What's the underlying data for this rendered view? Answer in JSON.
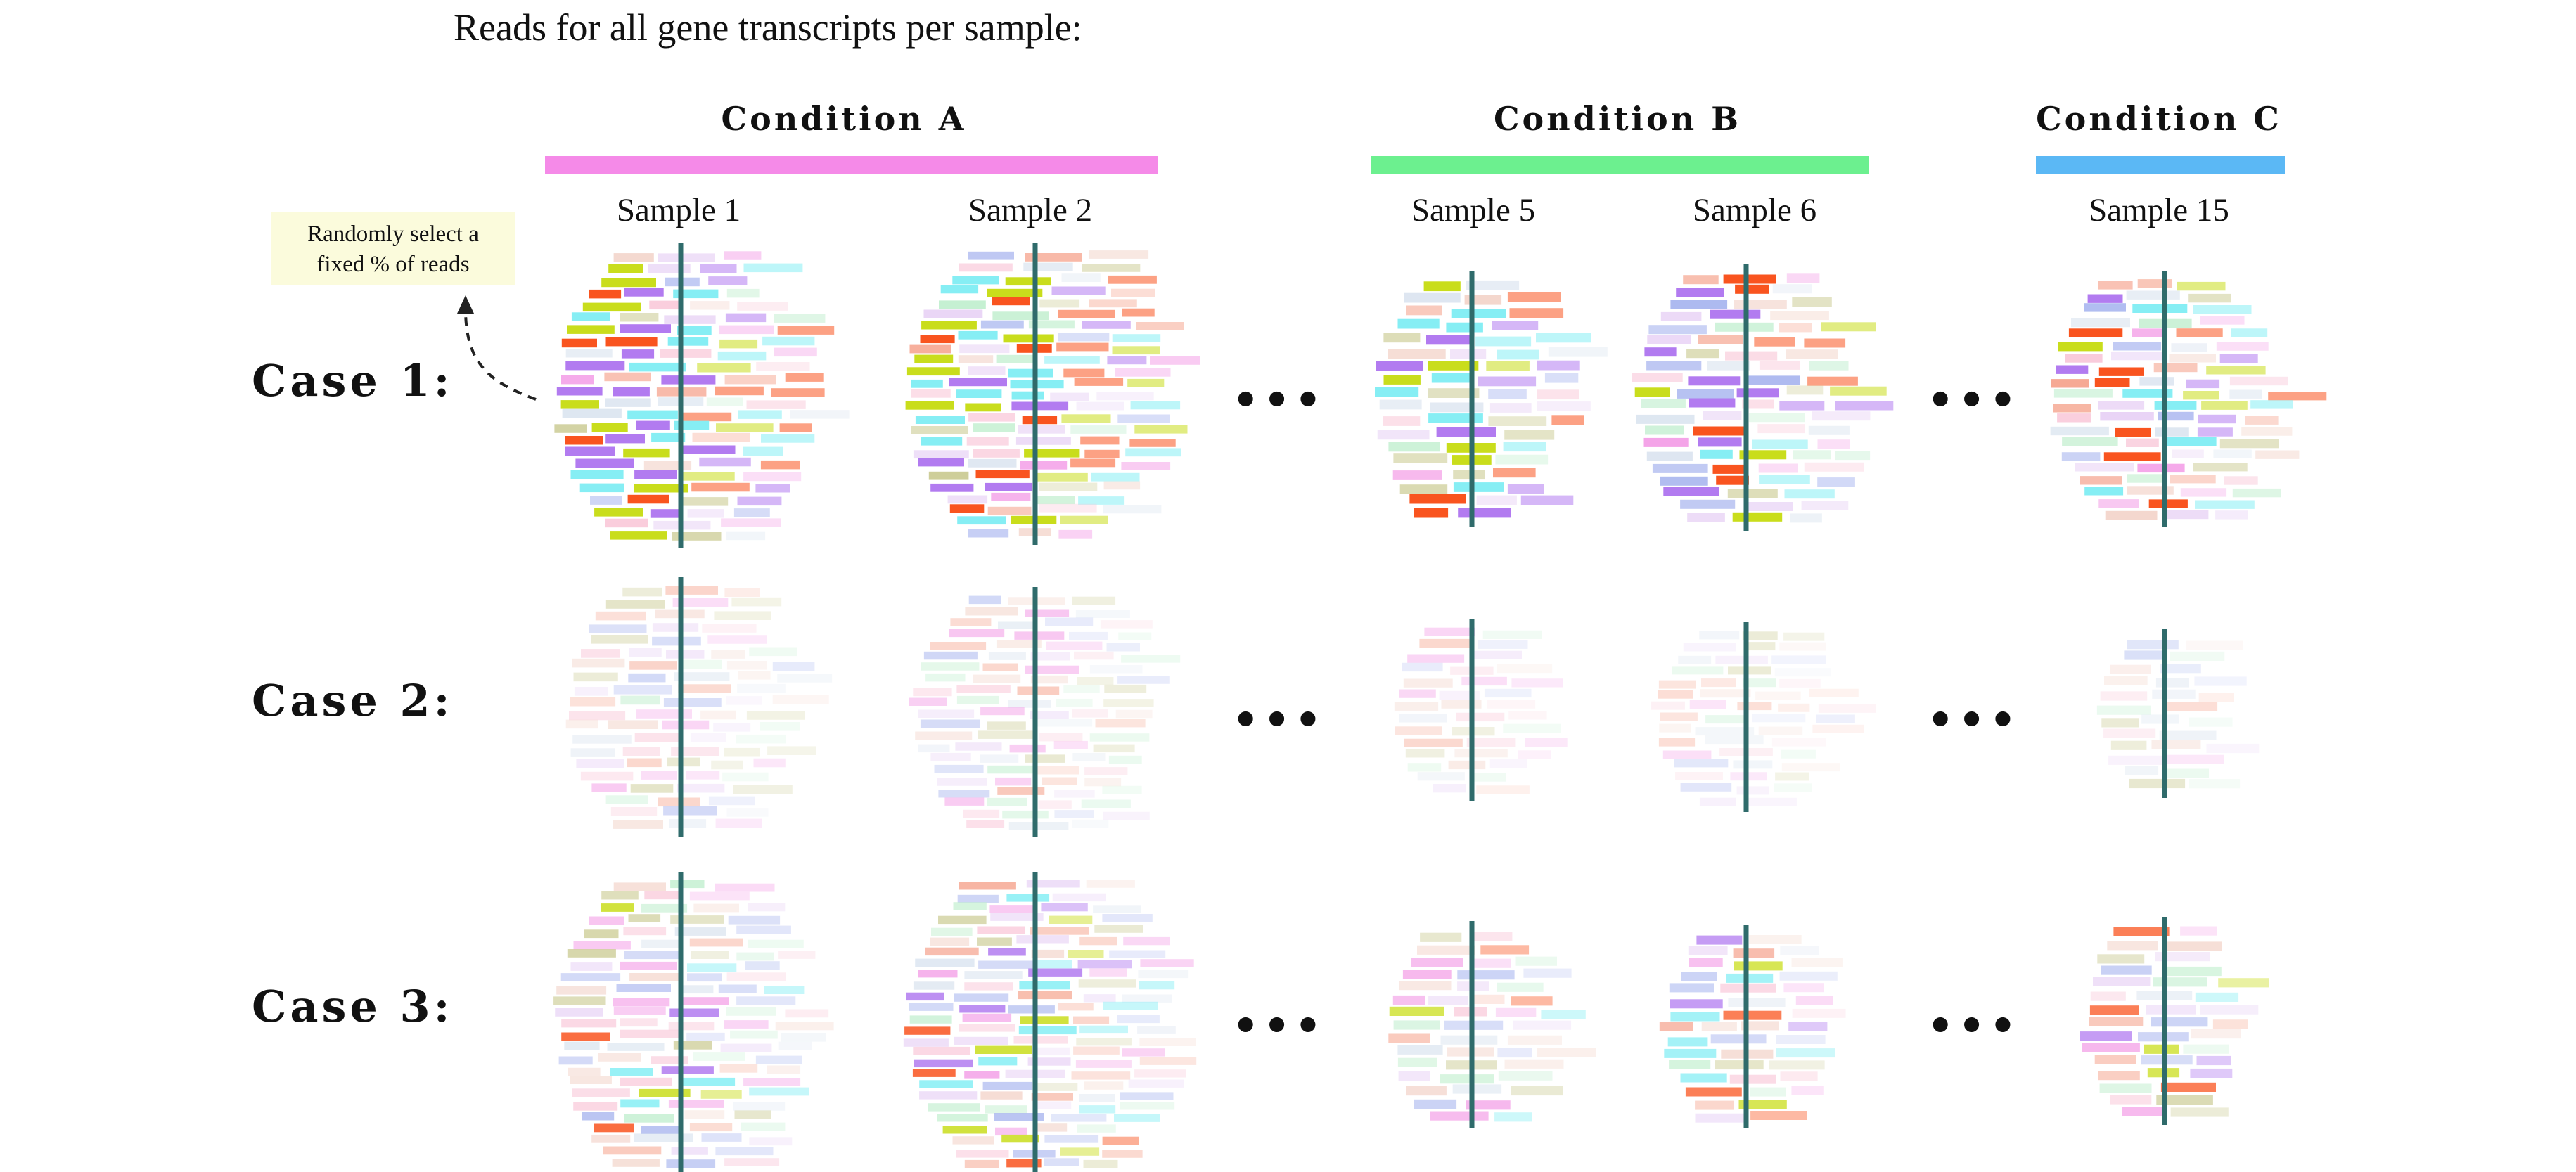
{
  "title": "Reads for all gene transcripts per sample:",
  "note": {
    "line1": "Randomly select a",
    "line2": "fixed % of reads"
  },
  "conditions": [
    {
      "label": "Condition A",
      "color": "#f58ae8"
    },
    {
      "label": "Condition B",
      "color": "#6cf08f"
    },
    {
      "label": "Condition C",
      "color": "#5bb8f5"
    }
  ],
  "samples": [
    "Sample 1",
    "Sample 2",
    "Sample 5",
    "Sample 6",
    "Sample 15"
  ],
  "cases": [
    "Case 1:",
    "Case 2:",
    "Case 3:"
  ],
  "ellipsis": "•••",
  "read_palette": [
    "#f9541f",
    "#b27bf0",
    "#c9dd1c",
    "#86eef4",
    "#a9b6ef",
    "#f5a089",
    "#f39be6",
    "#c9c98f",
    "#bfeecd",
    "#f9c7d8",
    "#d9e3ef",
    "#e8d2f5",
    "#f2d1c6"
  ],
  "axis_color": "#2f6b6b"
}
